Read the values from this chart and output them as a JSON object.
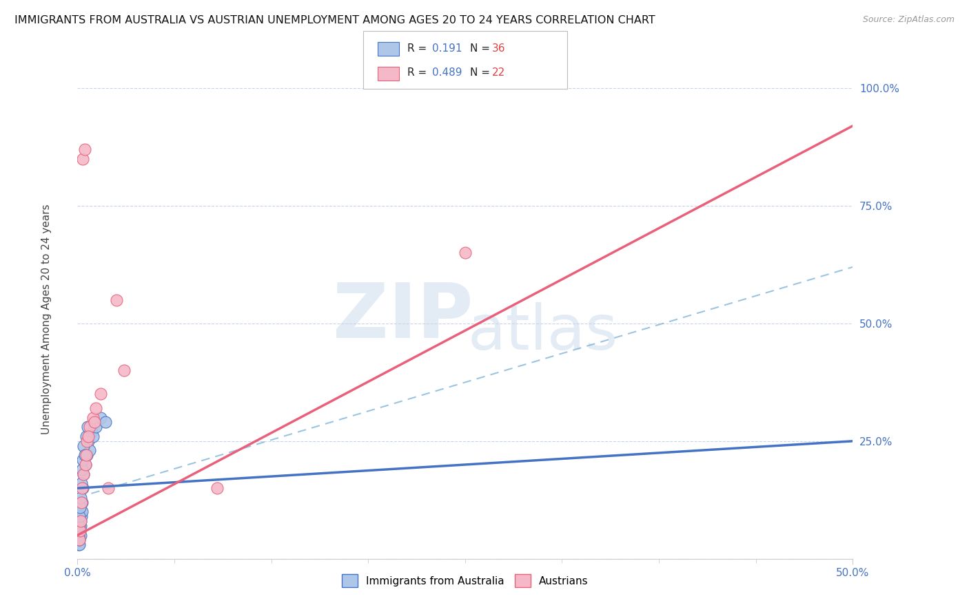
{
  "title": "IMMIGRANTS FROM AUSTRALIA VS AUSTRIAN UNEMPLOYMENT AMONG AGES 20 TO 24 YEARS CORRELATION CHART",
  "source": "Source: ZipAtlas.com",
  "ylabel": "Unemployment Among Ages 20 to 24 years",
  "xlim": [
    0,
    50
  ],
  "ylim": [
    0,
    107
  ],
  "ytick_values": [
    0,
    25,
    50,
    75,
    100
  ],
  "ytick_labels": [
    "",
    "25.0%",
    "50.0%",
    "75.0%",
    "100.0%"
  ],
  "blue_color": "#aec6e8",
  "blue_edge_color": "#4472c4",
  "blue_line_color": "#4472c4",
  "pink_color": "#f4b8c8",
  "pink_edge_color": "#e8607a",
  "pink_line_color": "#e8607a",
  "dash_line_color": "#7ab0d8",
  "grid_color": "#c8d4e8",
  "watermark_color": "#c8d8ec",
  "blue_scatter_x": [
    0.05,
    0.08,
    0.1,
    0.12,
    0.15,
    0.18,
    0.2,
    0.22,
    0.25,
    0.28,
    0.3,
    0.35,
    0.4,
    0.5,
    0.6,
    0.7,
    0.8,
    0.9,
    1.0,
    1.2,
    1.5,
    0.05,
    0.07,
    0.09,
    0.11,
    0.13,
    0.16,
    0.19,
    0.23,
    0.27,
    0.32,
    0.38,
    0.45,
    0.55,
    0.65,
    1.8
  ],
  "blue_scatter_y": [
    3,
    4,
    3,
    5,
    6,
    5,
    7,
    8,
    9,
    10,
    12,
    15,
    18,
    20,
    22,
    25,
    23,
    27,
    26,
    28,
    30,
    5,
    6,
    4,
    7,
    9,
    11,
    13,
    16,
    19,
    21,
    24,
    22,
    26,
    28,
    29
  ],
  "pink_scatter_x": [
    0.1,
    0.15,
    0.2,
    0.25,
    0.3,
    0.4,
    0.5,
    0.6,
    0.8,
    1.0,
    1.2,
    1.5,
    2.0,
    2.5,
    3.0,
    0.35,
    0.45,
    0.55,
    0.7,
    1.1,
    9.0,
    25.0
  ],
  "pink_scatter_y": [
    4,
    6,
    8,
    12,
    15,
    18,
    20,
    25,
    28,
    30,
    32,
    35,
    15,
    55,
    40,
    85,
    87,
    22,
    26,
    29,
    15,
    65
  ],
  "blue_line": [
    0,
    50,
    15,
    25
  ],
  "pink_line": [
    0,
    50,
    5,
    92
  ],
  "dash_line": [
    0,
    50,
    13,
    62
  ]
}
